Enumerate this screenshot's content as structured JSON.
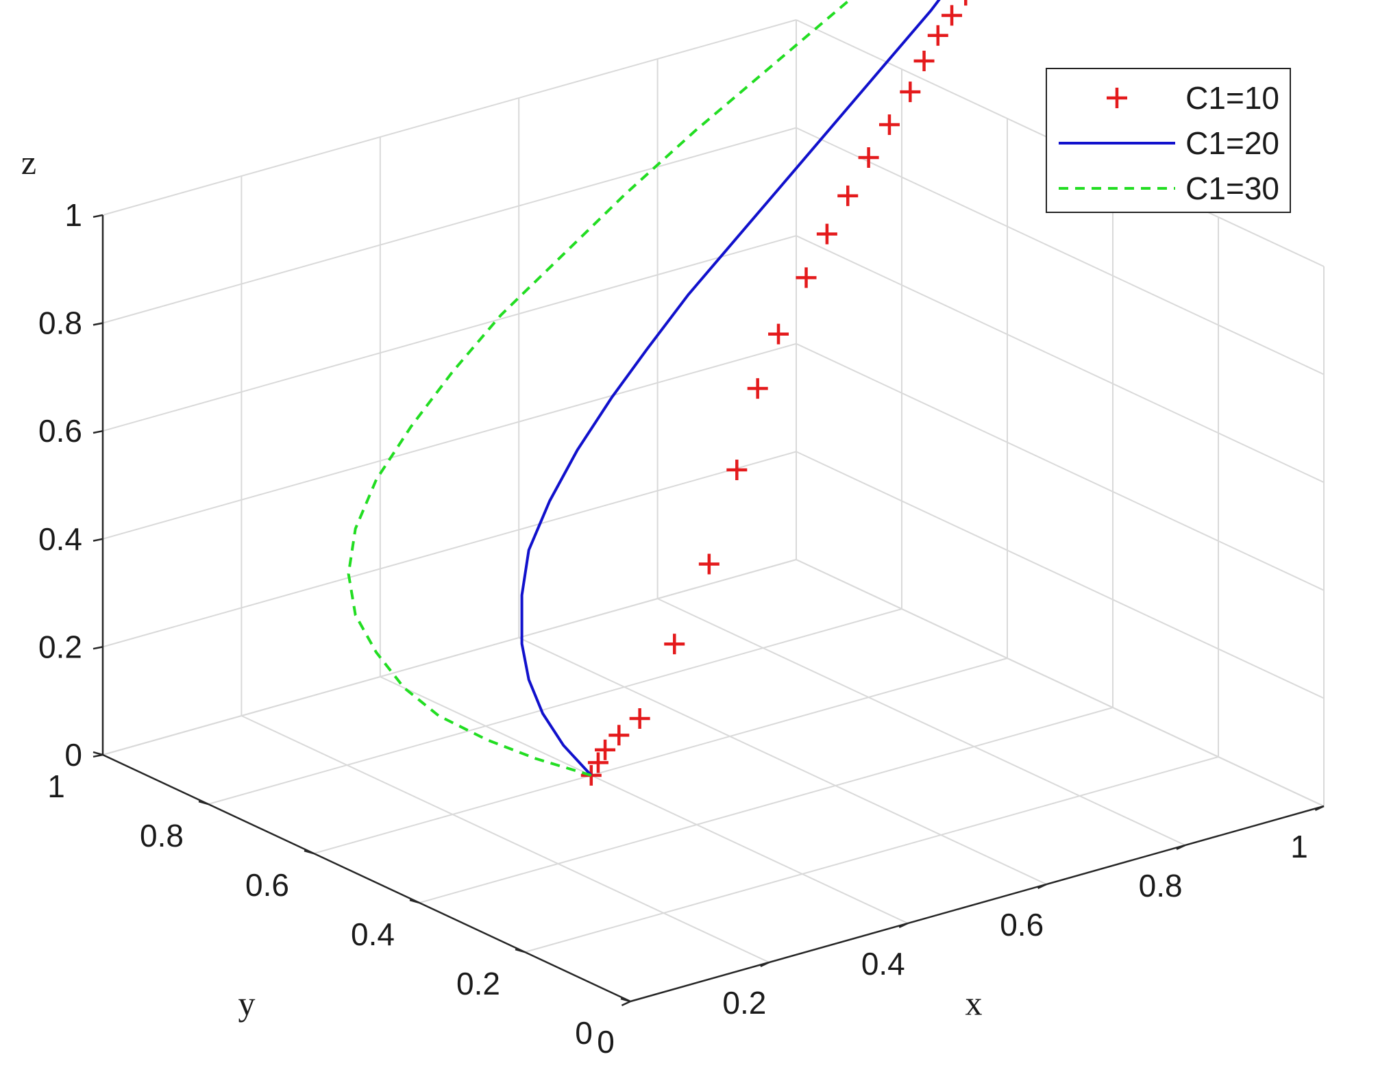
{
  "chart_data": {
    "type": "line",
    "projection": "3d",
    "xlabel": "x",
    "ylabel": "y",
    "zlabel": "z",
    "xlim": [
      0,
      1
    ],
    "ylim": [
      0,
      1
    ],
    "zlim": [
      0,
      1
    ],
    "x_ticks": [
      "0",
      "0.2",
      "0.4",
      "0.6",
      "0.8",
      "1"
    ],
    "y_ticks": [
      "0",
      "0.2",
      "0.4",
      "0.6",
      "0.8",
      "1"
    ],
    "z_ticks": [
      "0",
      "0.2",
      "0.4",
      "0.6",
      "0.8",
      "1"
    ],
    "grid": true,
    "legend_position": "top-right",
    "series": [
      {
        "name": "C1=10",
        "color": "#e41a1c",
        "style": "markers",
        "marker": "+",
        "x": [
          0.4,
          0.41,
          0.42,
          0.44,
          0.47,
          0.52,
          0.57,
          0.61,
          0.64,
          0.67,
          0.71,
          0.74,
          0.77,
          0.8,
          0.83,
          0.86,
          0.88,
          0.9,
          0.92,
          0.94,
          0.95,
          0.96,
          0.97,
          0.98,
          0.99,
          0.99,
          1.0
        ],
        "y": [
          0.6,
          0.6,
          0.6,
          0.6,
          0.6,
          0.6,
          0.6,
          0.6,
          0.6,
          0.6,
          0.6,
          0.6,
          0.6,
          0.6,
          0.6,
          0.6,
          0.6,
          0.6,
          0.6,
          0.6,
          0.6,
          0.6,
          0.6,
          0.6,
          0.6,
          0.6,
          0.6
        ],
        "z": [
          0.0,
          0.02,
          0.04,
          0.06,
          0.08,
          0.2,
          0.33,
          0.49,
          0.63,
          0.72,
          0.81,
          0.88,
          0.94,
          1.0,
          1.05,
          1.1,
          1.15,
          1.19,
          1.22,
          1.25,
          1.28,
          1.3,
          1.32,
          1.34,
          1.36,
          1.38,
          1.4
        ]
      },
      {
        "name": "C1=20",
        "color": "#1111cc",
        "style": "solid",
        "x": [
          0.4,
          0.36,
          0.33,
          0.31,
          0.3,
          0.3,
          0.31,
          0.34,
          0.38,
          0.43,
          0.48,
          0.54,
          0.61,
          0.68,
          0.75,
          0.82,
          0.89,
          0.95,
          1.0
        ],
        "y": [
          0.6,
          0.6,
          0.6,
          0.6,
          0.6,
          0.6,
          0.6,
          0.6,
          0.6,
          0.6,
          0.6,
          0.6,
          0.6,
          0.6,
          0.6,
          0.6,
          0.6,
          0.6,
          0.6
        ],
        "z": [
          0.0,
          0.07,
          0.14,
          0.21,
          0.28,
          0.37,
          0.45,
          0.53,
          0.61,
          0.69,
          0.76,
          0.84,
          0.92,
          1.0,
          1.08,
          1.16,
          1.24,
          1.32,
          1.4
        ]
      },
      {
        "name": "C1=30",
        "color": "#22dd22",
        "style": "dashed",
        "x": [
          0.4,
          0.32,
          0.25,
          0.18,
          0.13,
          0.09,
          0.06,
          0.05,
          0.06,
          0.09,
          0.14,
          0.2,
          0.27,
          0.36,
          0.45,
          0.55,
          0.66,
          0.77,
          0.88,
          0.98
        ],
        "y": [
          0.6,
          0.6,
          0.6,
          0.6,
          0.6,
          0.6,
          0.6,
          0.6,
          0.6,
          0.6,
          0.6,
          0.6,
          0.6,
          0.6,
          0.6,
          0.6,
          0.6,
          0.6,
          0.6,
          0.6
        ],
        "z": [
          0.0,
          0.06,
          0.12,
          0.19,
          0.26,
          0.34,
          0.42,
          0.5,
          0.58,
          0.66,
          0.74,
          0.82,
          0.9,
          0.98,
          1.06,
          1.14,
          1.22,
          1.3,
          1.38,
          1.42
        ]
      }
    ]
  }
}
